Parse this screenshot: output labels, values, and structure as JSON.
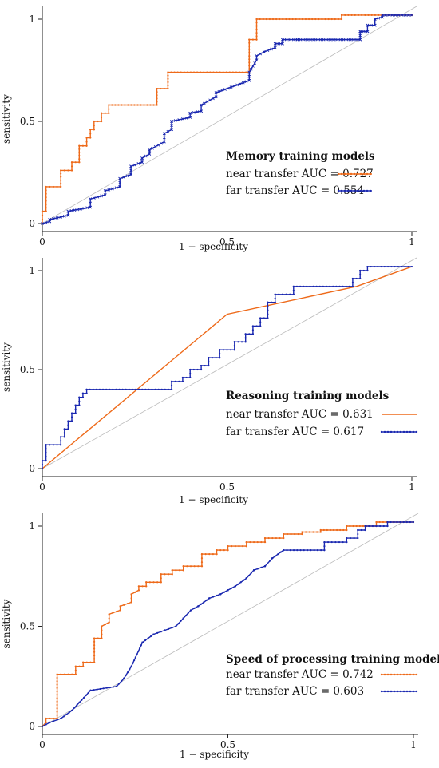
{
  "colors": {
    "near": "#ee6a1a",
    "far": "#1a28b0",
    "diagonal": "#bbbbbb",
    "axis": "#222222"
  },
  "chart_data": [
    {
      "type": "line",
      "title": "Memory training models",
      "xlabel": "1 − specificity",
      "ylabel": "sensitivity",
      "xlim": [
        0,
        1
      ],
      "ylim": [
        0,
        1
      ],
      "xticks": [
        "0",
        "0.5",
        "1"
      ],
      "yticks": [
        "0",
        "0.5",
        "1"
      ],
      "legend_position": "lower-right",
      "series": [
        {
          "name": "near transfer AUC = 0.727",
          "marker": "dot",
          "x": [
            0,
            0,
            0.01,
            0.01,
            0.05,
            0.05,
            0.08,
            0.08,
            0.1,
            0.1,
            0.12,
            0.12,
            0.13,
            0.13,
            0.14,
            0.14,
            0.16,
            0.16,
            0.18,
            0.18,
            0.31,
            0.31,
            0.34,
            0.34,
            0.56,
            0.56,
            0.58,
            0.58,
            0.81,
            0.81,
            1
          ],
          "y": [
            0,
            0.06,
            0.06,
            0.18,
            0.18,
            0.26,
            0.26,
            0.3,
            0.3,
            0.38,
            0.38,
            0.42,
            0.42,
            0.46,
            0.46,
            0.5,
            0.5,
            0.54,
            0.54,
            0.58,
            0.58,
            0.66,
            0.66,
            0.74,
            0.74,
            0.9,
            0.9,
            1.0,
            1.0,
            1.02,
            1.02
          ]
        },
        {
          "name": "far transfer AUC = 0.554",
          "marker": "x",
          "x": [
            0,
            0.02,
            0.02,
            0.07,
            0.07,
            0.13,
            0.13,
            0.17,
            0.17,
            0.21,
            0.21,
            0.24,
            0.24,
            0.27,
            0.27,
            0.29,
            0.29,
            0.33,
            0.33,
            0.35,
            0.35,
            0.4,
            0.4,
            0.43,
            0.43,
            0.47,
            0.47,
            0.56,
            0.56,
            0.58,
            0.58,
            0.6,
            0.6,
            0.63,
            0.63,
            0.65,
            0.65,
            0.69,
            0.69,
            0.86,
            0.86,
            0.88,
            0.88,
            0.9,
            0.9,
            0.92,
            0.92,
            1
          ],
          "y": [
            0,
            0.01,
            0.02,
            0.04,
            0.06,
            0.08,
            0.12,
            0.14,
            0.16,
            0.18,
            0.22,
            0.24,
            0.28,
            0.3,
            0.32,
            0.34,
            0.36,
            0.4,
            0.44,
            0.46,
            0.5,
            0.52,
            0.54,
            0.55,
            0.58,
            0.62,
            0.64,
            0.7,
            0.74,
            0.8,
            0.82,
            0.84,
            0.84,
            0.86,
            0.88,
            0.88,
            0.9,
            0.9,
            0.9,
            0.9,
            0.94,
            0.94,
            0.97,
            0.97,
            1.0,
            1.01,
            1.02,
            1.02
          ]
        }
      ]
    },
    {
      "type": "line",
      "title": "Reasoning training models",
      "xlabel": "1 − specificity",
      "ylabel": "sensitivity",
      "xlim": [
        0,
        1
      ],
      "ylim": [
        0,
        1
      ],
      "xticks": [
        "0",
        "0.5",
        "1"
      ],
      "yticks": [
        "0",
        "0.5",
        "1"
      ],
      "legend_position": "lower-right",
      "series": [
        {
          "name": "near transfer AUC = 0.631",
          "marker": "none",
          "x": [
            0,
            0.5,
            0.85,
            1.0
          ],
          "y": [
            0,
            0.78,
            0.92,
            1.02
          ]
        },
        {
          "name": "far transfer AUC = 0.617",
          "marker": "dot",
          "x": [
            0,
            0,
            0.01,
            0.01,
            0.05,
            0.05,
            0.06,
            0.06,
            0.07,
            0.07,
            0.08,
            0.08,
            0.09,
            0.09,
            0.1,
            0.1,
            0.11,
            0.11,
            0.12,
            0.12,
            0.35,
            0.35,
            0.38,
            0.38,
            0.4,
            0.4,
            0.43,
            0.43,
            0.45,
            0.45,
            0.48,
            0.48,
            0.52,
            0.52,
            0.55,
            0.55,
            0.57,
            0.57,
            0.59,
            0.59,
            0.61,
            0.61,
            0.63,
            0.63,
            0.68,
            0.68,
            0.84,
            0.84,
            0.86,
            0.86,
            0.88,
            0.88,
            1
          ],
          "y": [
            0,
            0.04,
            0.04,
            0.12,
            0.12,
            0.16,
            0.16,
            0.2,
            0.2,
            0.24,
            0.24,
            0.28,
            0.28,
            0.32,
            0.32,
            0.36,
            0.36,
            0.38,
            0.38,
            0.4,
            0.4,
            0.44,
            0.44,
            0.46,
            0.46,
            0.5,
            0.5,
            0.52,
            0.52,
            0.56,
            0.56,
            0.6,
            0.6,
            0.64,
            0.64,
            0.68,
            0.68,
            0.72,
            0.72,
            0.76,
            0.76,
            0.84,
            0.84,
            0.88,
            0.88,
            0.92,
            0.92,
            0.96,
            0.96,
            1.0,
            1.0,
            1.02,
            1.02
          ]
        }
      ]
    },
    {
      "type": "line",
      "title": "Speed of processing training models",
      "xlabel": "1 − specificity",
      "ylabel": "sensitivity",
      "xlim": [
        0,
        1
      ],
      "ylim": [
        0,
        1
      ],
      "xticks": [
        "0",
        "0.5",
        "1"
      ],
      "yticks": [
        "0",
        "0.5",
        "1"
      ],
      "legend_position": "lower-right",
      "series": [
        {
          "name": "near transfer AUC = 0.742",
          "marker": "dot",
          "x": [
            0,
            0.01,
            0.01,
            0.04,
            0.04,
            0.09,
            0.09,
            0.11,
            0.11,
            0.14,
            0.14,
            0.16,
            0.16,
            0.18,
            0.18,
            0.21,
            0.21,
            0.24,
            0.24,
            0.26,
            0.26,
            0.28,
            0.28,
            0.32,
            0.32,
            0.35,
            0.35,
            0.38,
            0.38,
            0.43,
            0.43,
            0.47,
            0.47,
            0.5,
            0.5,
            0.55,
            0.55,
            0.6,
            0.6,
            0.65,
            0.65,
            0.7,
            0.7,
            0.75,
            0.75,
            0.82,
            0.82,
            0.9,
            0.9,
            1
          ],
          "y": [
            0,
            0.02,
            0.04,
            0.04,
            0.26,
            0.26,
            0.3,
            0.3,
            0.32,
            0.32,
            0.44,
            0.44,
            0.5,
            0.52,
            0.56,
            0.58,
            0.6,
            0.62,
            0.66,
            0.68,
            0.7,
            0.7,
            0.72,
            0.72,
            0.76,
            0.76,
            0.78,
            0.78,
            0.8,
            0.8,
            0.86,
            0.86,
            0.88,
            0.88,
            0.9,
            0.9,
            0.92,
            0.92,
            0.94,
            0.94,
            0.96,
            0.96,
            0.97,
            0.97,
            0.98,
            0.98,
            1.0,
            1.0,
            1.02,
            1.02
          ]
        },
        {
          "name": "far transfer AUC = 0.603",
          "marker": "dot",
          "x": [
            0,
            0.02,
            0.02,
            0.05,
            0.05,
            0.08,
            0.08,
            0.1,
            0.1,
            0.13,
            0.13,
            0.2,
            0.2,
            0.22,
            0.22,
            0.24,
            0.24,
            0.27,
            0.27,
            0.3,
            0.3,
            0.33,
            0.33,
            0.36,
            0.36,
            0.38,
            0.38,
            0.4,
            0.4,
            0.42,
            0.42,
            0.45,
            0.45,
            0.48,
            0.48,
            0.5,
            0.5,
            0.52,
            0.52,
            0.55,
            0.55,
            0.57,
            0.57,
            0.6,
            0.6,
            0.62,
            0.62,
            0.65,
            0.65,
            0.76,
            0.76,
            0.82,
            0.82,
            0.85,
            0.85,
            0.87,
            0.87,
            0.93,
            0.93,
            1
          ],
          "y": [
            0,
            0.02,
            0.02,
            0.04,
            0.04,
            0.08,
            0.08,
            0.12,
            0.12,
            0.18,
            0.18,
            0.2,
            0.2,
            0.24,
            0.24,
            0.3,
            0.3,
            0.42,
            0.42,
            0.46,
            0.46,
            0.48,
            0.48,
            0.5,
            0.5,
            0.54,
            0.54,
            0.58,
            0.58,
            0.6,
            0.6,
            0.64,
            0.64,
            0.66,
            0.66,
            0.68,
            0.68,
            0.7,
            0.7,
            0.74,
            0.74,
            0.78,
            0.78,
            0.8,
            0.8,
            0.84,
            0.84,
            0.88,
            0.88,
            0.88,
            0.92,
            0.92,
            0.94,
            0.94,
            0.98,
            0.98,
            1.0,
            1.0,
            1.02,
            1.02
          ]
        }
      ]
    }
  ]
}
